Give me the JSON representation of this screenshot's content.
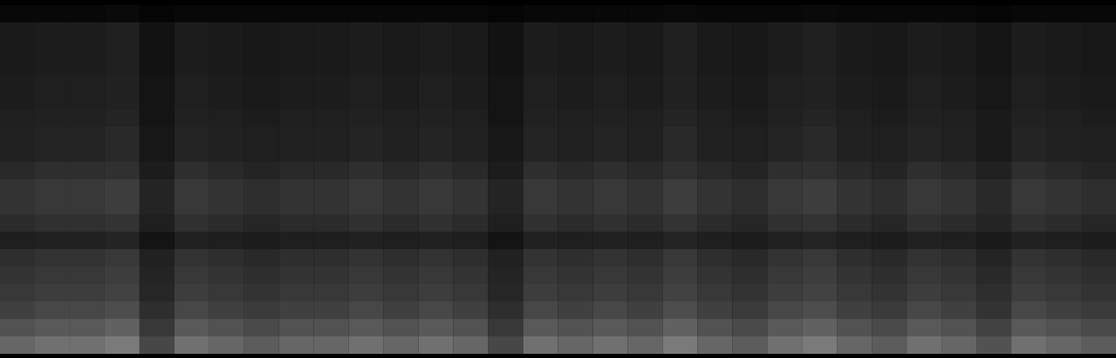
{
  "chart_data": {
    "type": "heatmap",
    "tick_labels": false,
    "zlim": [
      0,
      1
    ],
    "cells": [
      [
        0.03,
        0.03,
        0.03,
        0.04,
        0.02,
        0.03,
        0.03,
        0.03,
        0.03,
        0.03,
        0.03,
        0.03,
        0.03,
        0.03,
        0.02,
        0.03,
        0.03,
        0.03,
        0.03,
        0.04,
        0.03,
        0.03,
        0.03,
        0.04,
        0.03,
        0.03,
        0.03,
        0.03,
        0.02,
        0.03,
        0.03,
        0.03
      ],
      [
        0.1,
        0.11,
        0.11,
        0.12,
        0.07,
        0.11,
        0.1,
        0.09,
        0.1,
        0.1,
        0.11,
        0.1,
        0.11,
        0.1,
        0.07,
        0.11,
        0.1,
        0.11,
        0.1,
        0.12,
        0.1,
        0.09,
        0.11,
        0.12,
        0.1,
        0.09,
        0.11,
        0.1,
        0.08,
        0.11,
        0.1,
        0.09
      ],
      [
        0.1,
        0.11,
        0.11,
        0.12,
        0.07,
        0.11,
        0.1,
        0.09,
        0.1,
        0.1,
        0.11,
        0.1,
        0.11,
        0.1,
        0.07,
        0.11,
        0.1,
        0.11,
        0.1,
        0.12,
        0.1,
        0.09,
        0.11,
        0.12,
        0.1,
        0.09,
        0.11,
        0.1,
        0.08,
        0.11,
        0.1,
        0.09
      ],
      [
        0.1,
        0.11,
        0.11,
        0.12,
        0.07,
        0.11,
        0.1,
        0.09,
        0.1,
        0.1,
        0.11,
        0.1,
        0.11,
        0.1,
        0.07,
        0.11,
        0.1,
        0.11,
        0.1,
        0.12,
        0.1,
        0.09,
        0.11,
        0.12,
        0.1,
        0.09,
        0.11,
        0.1,
        0.08,
        0.11,
        0.1,
        0.09
      ],
      [
        0.11,
        0.12,
        0.12,
        0.13,
        0.08,
        0.12,
        0.11,
        0.1,
        0.11,
        0.11,
        0.12,
        0.11,
        0.12,
        0.11,
        0.08,
        0.12,
        0.11,
        0.12,
        0.11,
        0.13,
        0.11,
        0.1,
        0.12,
        0.13,
        0.11,
        0.1,
        0.12,
        0.11,
        0.09,
        0.12,
        0.11,
        0.1
      ],
      [
        0.11,
        0.12,
        0.12,
        0.13,
        0.08,
        0.12,
        0.11,
        0.1,
        0.11,
        0.11,
        0.12,
        0.11,
        0.12,
        0.11,
        0.08,
        0.12,
        0.11,
        0.12,
        0.11,
        0.13,
        0.11,
        0.1,
        0.12,
        0.13,
        0.11,
        0.1,
        0.12,
        0.11,
        0.09,
        0.12,
        0.11,
        0.1
      ],
      [
        0.12,
        0.13,
        0.13,
        0.14,
        0.08,
        0.13,
        0.12,
        0.11,
        0.12,
        0.12,
        0.13,
        0.12,
        0.13,
        0.12,
        0.08,
        0.13,
        0.12,
        0.13,
        0.12,
        0.14,
        0.12,
        0.11,
        0.13,
        0.14,
        0.12,
        0.11,
        0.13,
        0.12,
        0.1,
        0.13,
        0.12,
        0.11
      ],
      [
        0.13,
        0.14,
        0.14,
        0.16,
        0.09,
        0.14,
        0.13,
        0.12,
        0.13,
        0.13,
        0.14,
        0.13,
        0.14,
        0.13,
        0.09,
        0.14,
        0.13,
        0.14,
        0.13,
        0.16,
        0.13,
        0.12,
        0.14,
        0.16,
        0.13,
        0.12,
        0.14,
        0.13,
        0.1,
        0.14,
        0.13,
        0.12
      ],
      [
        0.13,
        0.14,
        0.14,
        0.16,
        0.09,
        0.14,
        0.13,
        0.12,
        0.13,
        0.13,
        0.14,
        0.13,
        0.14,
        0.13,
        0.09,
        0.14,
        0.13,
        0.14,
        0.13,
        0.16,
        0.13,
        0.12,
        0.14,
        0.16,
        0.13,
        0.12,
        0.14,
        0.13,
        0.1,
        0.14,
        0.13,
        0.12
      ],
      [
        0.16,
        0.18,
        0.18,
        0.19,
        0.11,
        0.18,
        0.16,
        0.14,
        0.16,
        0.16,
        0.18,
        0.16,
        0.18,
        0.16,
        0.11,
        0.18,
        0.16,
        0.18,
        0.16,
        0.19,
        0.16,
        0.14,
        0.18,
        0.19,
        0.16,
        0.14,
        0.18,
        0.16,
        0.13,
        0.18,
        0.16,
        0.14
      ],
      [
        0.2,
        0.22,
        0.22,
        0.24,
        0.14,
        0.22,
        0.2,
        0.18,
        0.2,
        0.2,
        0.22,
        0.2,
        0.22,
        0.2,
        0.14,
        0.22,
        0.2,
        0.22,
        0.2,
        0.24,
        0.2,
        0.18,
        0.22,
        0.24,
        0.2,
        0.18,
        0.22,
        0.2,
        0.16,
        0.22,
        0.2,
        0.18
      ],
      [
        0.2,
        0.22,
        0.22,
        0.24,
        0.14,
        0.22,
        0.2,
        0.18,
        0.2,
        0.2,
        0.22,
        0.2,
        0.22,
        0.2,
        0.14,
        0.22,
        0.2,
        0.22,
        0.2,
        0.24,
        0.2,
        0.18,
        0.22,
        0.24,
        0.2,
        0.18,
        0.22,
        0.2,
        0.16,
        0.22,
        0.2,
        0.18
      ],
      [
        0.17,
        0.19,
        0.19,
        0.2,
        0.12,
        0.19,
        0.17,
        0.15,
        0.17,
        0.17,
        0.19,
        0.17,
        0.19,
        0.17,
        0.12,
        0.19,
        0.17,
        0.19,
        0.17,
        0.2,
        0.17,
        0.15,
        0.19,
        0.2,
        0.17,
        0.15,
        0.19,
        0.17,
        0.14,
        0.19,
        0.17,
        0.15
      ],
      [
        0.12,
        0.13,
        0.13,
        0.14,
        0.08,
        0.13,
        0.12,
        0.11,
        0.12,
        0.12,
        0.13,
        0.12,
        0.13,
        0.12,
        0.08,
        0.13,
        0.12,
        0.13,
        0.12,
        0.14,
        0.12,
        0.11,
        0.13,
        0.14,
        0.12,
        0.11,
        0.13,
        0.12,
        0.1,
        0.13,
        0.12,
        0.11
      ],
      [
        0.18,
        0.2,
        0.2,
        0.22,
        0.13,
        0.2,
        0.18,
        0.16,
        0.18,
        0.18,
        0.2,
        0.18,
        0.2,
        0.18,
        0.13,
        0.2,
        0.18,
        0.2,
        0.18,
        0.22,
        0.18,
        0.16,
        0.2,
        0.22,
        0.18,
        0.16,
        0.2,
        0.18,
        0.14,
        0.2,
        0.18,
        0.16
      ],
      [
        0.2,
        0.22,
        0.22,
        0.24,
        0.14,
        0.22,
        0.2,
        0.18,
        0.2,
        0.2,
        0.22,
        0.2,
        0.22,
        0.2,
        0.14,
        0.22,
        0.2,
        0.22,
        0.2,
        0.24,
        0.2,
        0.18,
        0.22,
        0.24,
        0.2,
        0.18,
        0.22,
        0.2,
        0.16,
        0.22,
        0.2,
        0.18
      ],
      [
        0.22,
        0.24,
        0.24,
        0.26,
        0.15,
        0.24,
        0.22,
        0.2,
        0.22,
        0.22,
        0.24,
        0.22,
        0.24,
        0.22,
        0.15,
        0.24,
        0.22,
        0.24,
        0.22,
        0.26,
        0.22,
        0.2,
        0.24,
        0.26,
        0.22,
        0.2,
        0.24,
        0.22,
        0.18,
        0.24,
        0.22,
        0.2
      ],
      [
        0.25,
        0.28,
        0.28,
        0.3,
        0.18,
        0.28,
        0.25,
        0.23,
        0.25,
        0.25,
        0.28,
        0.25,
        0.28,
        0.25,
        0.18,
        0.28,
        0.25,
        0.28,
        0.25,
        0.3,
        0.25,
        0.23,
        0.28,
        0.3,
        0.25,
        0.23,
        0.28,
        0.25,
        0.2,
        0.28,
        0.25,
        0.23
      ],
      [
        0.32,
        0.35,
        0.35,
        0.38,
        0.22,
        0.35,
        0.32,
        0.29,
        0.32,
        0.32,
        0.35,
        0.32,
        0.35,
        0.32,
        0.22,
        0.35,
        0.32,
        0.35,
        0.32,
        0.38,
        0.32,
        0.29,
        0.35,
        0.38,
        0.32,
        0.29,
        0.35,
        0.32,
        0.26,
        0.35,
        0.32,
        0.29
      ],
      [
        0.4,
        0.44,
        0.44,
        0.48,
        0.28,
        0.44,
        0.4,
        0.36,
        0.4,
        0.4,
        0.44,
        0.4,
        0.44,
        0.4,
        0.28,
        0.44,
        0.4,
        0.44,
        0.4,
        0.48,
        0.4,
        0.36,
        0.44,
        0.48,
        0.4,
        0.36,
        0.44,
        0.4,
        0.32,
        0.44,
        0.4,
        0.36
      ]
    ]
  }
}
